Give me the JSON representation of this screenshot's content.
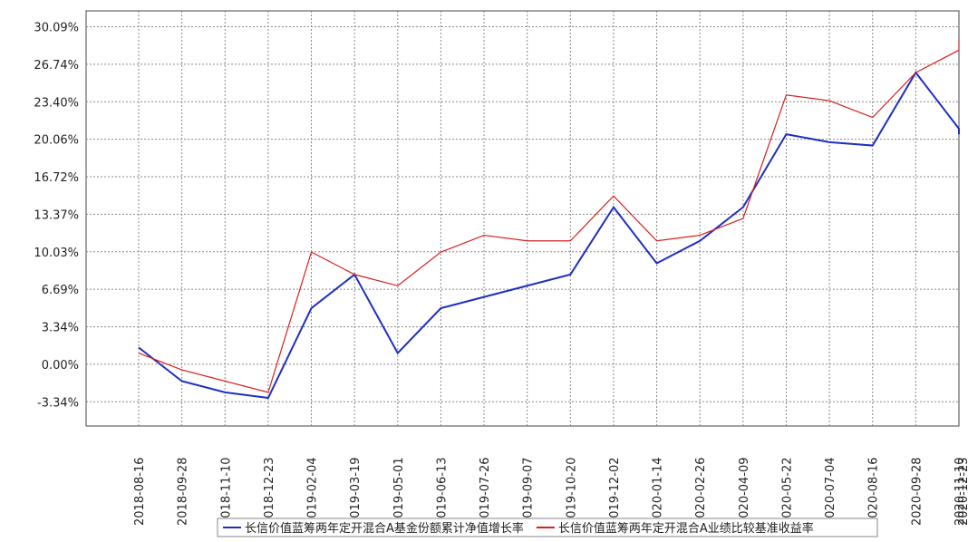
{
  "chart_data": {
    "type": "line",
    "categories": [
      "2018-08-16",
      "2018-09-28",
      "2018-11-10",
      "2018-12-23",
      "2019-02-04",
      "2019-03-19",
      "2019-05-01",
      "2019-06-13",
      "2019-07-26",
      "2019-09-07",
      "2019-10-20",
      "2019-12-02",
      "2020-01-14",
      "2020-02-26",
      "2020-04-09",
      "2020-05-22",
      "2020-07-04",
      "2020-08-16",
      "2020-09-28",
      "2020-11-10",
      "2020-12-23"
    ],
    "series": [
      {
        "name": "长信价值蓝筹两年定开混合A基金份额累计净值增长率",
        "color": "#1f2fc0",
        "values": [
          1.5,
          -1.5,
          -2.5,
          -3.0,
          5.0,
          8.0,
          1.0,
          5.0,
          6.0,
          7.0,
          8.0,
          14.0,
          9.0,
          11.0,
          14.0,
          20.5,
          19.8,
          19.5,
          26.0,
          21.0,
          20.5
        ]
      },
      {
        "name": "长信价值蓝筹两年定开混合A业绩比较基准收益率",
        "color": "#d42020",
        "values": [
          1.0,
          -0.5,
          -1.5,
          -2.5,
          10.0,
          8.0,
          7.0,
          10.0,
          11.5,
          11.0,
          11.0,
          15.0,
          11.0,
          11.5,
          13.0,
          24.0,
          23.5,
          22.0,
          26.0,
          28.0,
          29.0
        ]
      }
    ],
    "ylim": [
      -5.5,
      31.5
    ],
    "yticks": [
      {
        "value": -3.34,
        "label": "-3.34%"
      },
      {
        "value": 0,
        "label": "0.00%"
      },
      {
        "value": 3.34,
        "label": "3.34%"
      },
      {
        "value": 6.69,
        "label": "6.69%"
      },
      {
        "value": 10.03,
        "label": "10.03%"
      },
      {
        "value": 13.37,
        "label": "13.37%"
      },
      {
        "value": 16.72,
        "label": "16.72%"
      },
      {
        "value": 20.06,
        "label": "20.06%"
      },
      {
        "value": 23.4,
        "label": "23.40%"
      },
      {
        "value": 26.74,
        "label": "26.74%"
      },
      {
        "value": 30.09,
        "label": "30.09%"
      }
    ],
    "grid": true
  }
}
